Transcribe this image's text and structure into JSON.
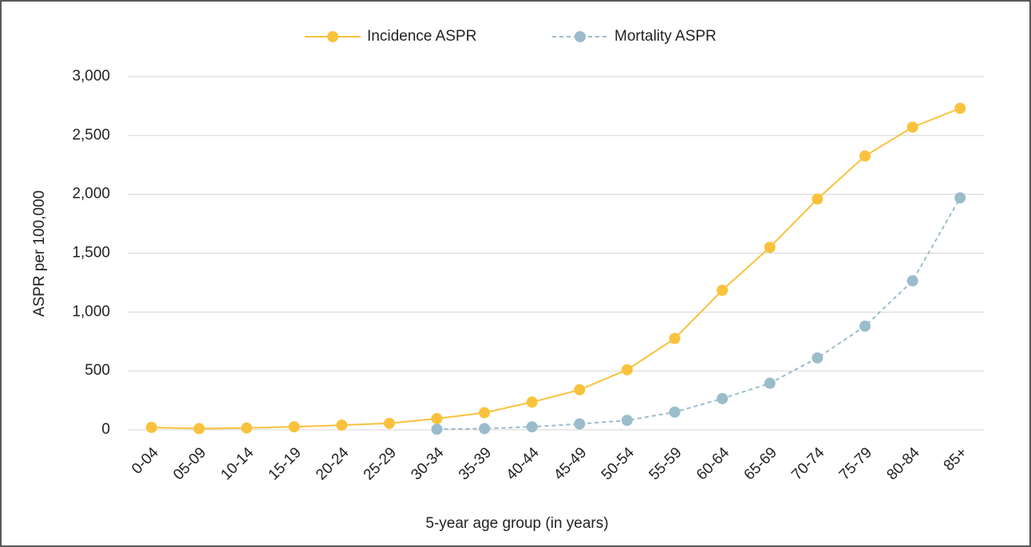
{
  "chart_data": {
    "type": "line",
    "categories": [
      "0-04",
      "05-09",
      "10-14",
      "15-19",
      "20-24",
      "25-29",
      "30-34",
      "35-39",
      "40-44",
      "45-49",
      "50-54",
      "55-59",
      "60-64",
      "65-69",
      "70-74",
      "75-79",
      "80-84",
      "85+"
    ],
    "series": [
      {
        "name": "Incidence ASPR",
        "color": "#f9c23c",
        "dash": false,
        "values": [
          20,
          10,
          15,
          25,
          40,
          55,
          95,
          145,
          235,
          340,
          510,
          775,
          1185,
          1550,
          1960,
          2325,
          2570,
          2730
        ]
      },
      {
        "name": "Mortality ASPR",
        "color": "#9bbccb",
        "dash": true,
        "values": [
          null,
          null,
          null,
          null,
          null,
          null,
          5,
          10,
          25,
          50,
          80,
          150,
          265,
          395,
          610,
          880,
          1265,
          1970
        ]
      }
    ],
    "ylim": [
      0,
      3000
    ],
    "yticks": [
      0,
      500,
      {
        "value": 1000,
        "label": "1,000"
      },
      {
        "value": 1500,
        "label": "1,500"
      },
      {
        "value": 2000,
        "label": "2,000"
      },
      {
        "value": 2500,
        "label": "2,500"
      },
      {
        "value": 3000,
        "label": "3,000"
      }
    ],
    "ylabel": "ASPR per 100,000",
    "xlabel": "5-year age group (in years)",
    "grid": true,
    "legend": "top"
  }
}
